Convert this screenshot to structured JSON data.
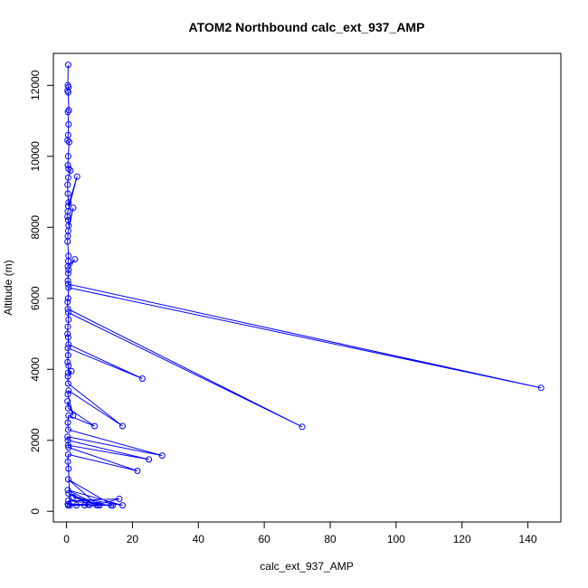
{
  "chart_data": {
    "type": "line",
    "title": "ATOM2 Northbound calc_ext_937_AMP",
    "xlabel": "calc_ext_937_AMP",
    "ylabel": "Altitude (m)",
    "xlim": [
      -4,
      150
    ],
    "ylim": [
      -300,
      12900
    ],
    "x_ticks": [
      0,
      20,
      40,
      60,
      80,
      100,
      120,
      140
    ],
    "y_ticks": [
      0,
      2000,
      4000,
      6000,
      8000,
      10000,
      12000
    ],
    "grid": false,
    "legend": "none",
    "series_color": "#0000ff",
    "series": [
      {
        "x": [
          0.5,
          0.4,
          0.6,
          0.3,
          0.5,
          0.7,
          0.4,
          0.6,
          0.5,
          0.3,
          0.8,
          0.5,
          0.4,
          0.6,
          1.2,
          0.5,
          0.3,
          0.4,
          0.6,
          0.5,
          3.2,
          0.4,
          0.3,
          0.5,
          0.6,
          2.0,
          0.5,
          0.4,
          0.3,
          0.6,
          0.5,
          0.4,
          2.5,
          0.6,
          0.5,
          0.4,
          0.5,
          144.0,
          0.6,
          0.5,
          0.3,
          0.4,
          71.5,
          0.5,
          0.6,
          0.4,
          0.3,
          0.5,
          0.6,
          23.0,
          0.4,
          0.5,
          0.3,
          0.6,
          0.5,
          1.5,
          0.4,
          0.5,
          17.0,
          0.6,
          0.4,
          2.0,
          0.3,
          0.5,
          8.5,
          0.6,
          0.4,
          0.5,
          29.0,
          0.3,
          0.5,
          25.0,
          0.4,
          0.6,
          21.5,
          0.5,
          0.4,
          0.6,
          1.0,
          5.5,
          14.0,
          0.5,
          9.5,
          0.4,
          17.0,
          2.0,
          10.0,
          0.6,
          7.0,
          3.0,
          13.5,
          0.5,
          16.0,
          9.0,
          0.4,
          6.5,
          0.5
        ],
        "y": [
          12580,
          12000,
          11950,
          11850,
          11800,
          11300,
          11250,
          10900,
          10600,
          10450,
          10400,
          10000,
          9750,
          9650,
          9600,
          9400,
          9200,
          8950,
          8700,
          8600,
          9430,
          8450,
          8300,
          8200,
          8050,
          8550,
          7900,
          7750,
          7600,
          7200,
          7050,
          6900,
          7100,
          6800,
          6700,
          6500,
          6400,
          3480,
          6300,
          6000,
          5900,
          5700,
          2380,
          5600,
          5400,
          5200,
          5000,
          4900,
          4700,
          3740,
          4600,
          4400,
          4200,
          4100,
          3900,
          3950,
          3800,
          3600,
          2400,
          3400,
          3300,
          2700,
          3100,
          2900,
          2400,
          2700,
          2500,
          2300,
          1570,
          2100,
          1860,
          1460,
          2000,
          1800,
          1140,
          1600,
          1400,
          1200,
          170,
          170,
          170,
          900,
          170,
          600,
          170,
          400,
          170,
          500,
          180,
          170,
          170,
          300,
          350,
          180,
          200,
          190,
          170
        ]
      }
    ]
  }
}
